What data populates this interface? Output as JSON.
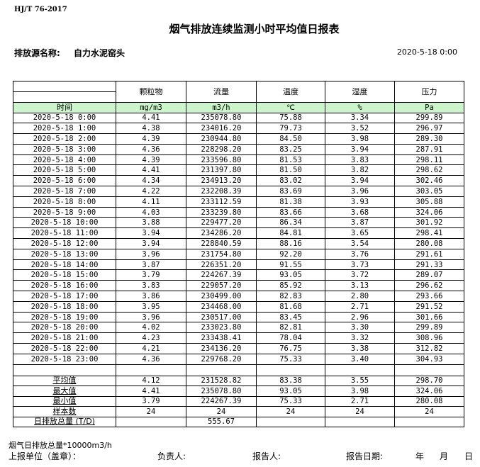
{
  "standard": "HJ/T  76-2017",
  "title": "烟气排放连续监测小时平均值日报表",
  "source_label": "排放源名称:",
  "source_value": "自力水泥窑头",
  "report_datetime": "2020-5-18 0:00",
  "table": {
    "headers": [
      "颗粒物",
      "流量",
      "温度",
      "湿度",
      "压力"
    ],
    "time_label": "时间",
    "units": [
      "mg/m3",
      "m3/h",
      "℃",
      "%",
      "Pa"
    ],
    "rows": [
      [
        "2020-5-18 0:00",
        "4.41",
        "235078.80",
        "75.88",
        "3.34",
        "299.89"
      ],
      [
        "2020-5-18 1:00",
        "4.38",
        "234016.20",
        "79.73",
        "3.52",
        "296.97"
      ],
      [
        "2020-5-18 2:00",
        "4.39",
        "230944.80",
        "84.50",
        "3.98",
        "289.30"
      ],
      [
        "2020-5-18 3:00",
        "4.36",
        "228298.20",
        "83.25",
        "3.94",
        "287.91"
      ],
      [
        "2020-5-18 4:00",
        "4.39",
        "233596.80",
        "81.53",
        "3.83",
        "298.11"
      ],
      [
        "2020-5-18 5:00",
        "4.41",
        "231397.80",
        "81.50",
        "3.82",
        "298.62"
      ],
      [
        "2020-5-18 6:00",
        "4.34",
        "234913.20",
        "83.02",
        "3.94",
        "302.46"
      ],
      [
        "2020-5-18 7:00",
        "4.22",
        "232208.39",
        "83.69",
        "3.96",
        "303.05"
      ],
      [
        "2020-5-18 8:00",
        "4.11",
        "233112.59",
        "81.38",
        "3.93",
        "305.88"
      ],
      [
        "2020-5-18 9:00",
        "4.03",
        "233239.80",
        "83.66",
        "3.68",
        "324.06"
      ],
      [
        "2020-5-18 10:00",
        "3.88",
        "229477.20",
        "86.34",
        "3.87",
        "301.92"
      ],
      [
        "2020-5-18 11:00",
        "3.94",
        "234286.20",
        "84.81",
        "3.65",
        "298.41"
      ],
      [
        "2020-5-18 12:00",
        "3.94",
        "228840.59",
        "88.16",
        "3.54",
        "280.08"
      ],
      [
        "2020-5-18 13:00",
        "3.96",
        "231754.80",
        "92.20",
        "3.76",
        "291.61"
      ],
      [
        "2020-5-18 14:00",
        "3.87",
        "226351.20",
        "91.55",
        "3.73",
        "291.33"
      ],
      [
        "2020-5-18 15:00",
        "3.79",
        "224267.39",
        "93.05",
        "3.72",
        "289.07"
      ],
      [
        "2020-5-18 16:00",
        "3.83",
        "229057.20",
        "85.92",
        "3.13",
        "296.62"
      ],
      [
        "2020-5-18 17:00",
        "3.86",
        "230499.00",
        "82.83",
        "2.80",
        "293.66"
      ],
      [
        "2020-5-18 18:00",
        "3.95",
        "234468.00",
        "81.68",
        "2.71",
        "291.52"
      ],
      [
        "2020-5-18 19:00",
        "3.96",
        "230517.00",
        "83.45",
        "2.96",
        "301.66"
      ],
      [
        "2020-5-18 20:00",
        "4.02",
        "233023.80",
        "82.81",
        "3.30",
        "299.89"
      ],
      [
        "2020-5-18 21:00",
        "4.23",
        "233438.41",
        "78.04",
        "3.32",
        "308.96"
      ],
      [
        "2020-5-18 22:00",
        "4.21",
        "234136.20",
        "76.75",
        "3.38",
        "312.82"
      ],
      [
        "2020-5-18 23:00",
        "4.36",
        "229768.20",
        "75.33",
        "3.40",
        "304.93"
      ]
    ],
    "summary": [
      [
        "平均值",
        "4.12",
        "231528.82",
        "83.38",
        "3.55",
        "298.70"
      ],
      [
        "最大值",
        "4.41",
        "235078.80",
        "93.05",
        "3.98",
        "324.06"
      ],
      [
        "最小值",
        "3.79",
        "224267.39",
        "75.33",
        "2.71",
        "280.08"
      ],
      [
        "样本数",
        "24",
        "24",
        "24",
        "24",
        "24"
      ],
      [
        "日排放总量 (T/D)",
        "",
        "555.67",
        "",
        "",
        ""
      ]
    ],
    "header_bg": "#ccf5cc"
  },
  "footer": {
    "note": "烟气日排放总量*10000m3/h",
    "unit_label": "上报单位（盖章）：",
    "responsible_label": "负责人:",
    "reporter_label": "报告人:",
    "date_label": "报告日期:",
    "year": "年",
    "month": "月",
    "day": "日"
  }
}
